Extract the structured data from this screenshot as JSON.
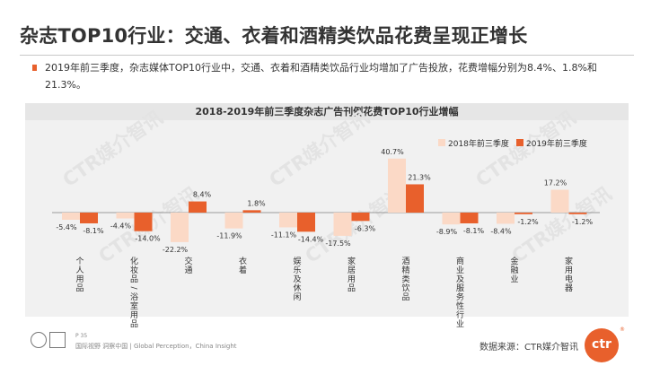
{
  "title": "杂志TOP10行业：交通、衣着和酒精类饮品花费呈现正增长",
  "bullet": "2019年前三季度，杂志媒体TOP10行业中，交通、衣着和酒精类饮品行业均增加了广告投放，花费增幅分别为8.4%、1.8%和21.3%。",
  "watermark": "CTR媒介智讯",
  "page_number": "P 35",
  "footer": "国际视野 洞察中国 | Global Perception，China Insight",
  "source": "数据来源：CTR媒介智讯",
  "logo_text": "ctr",
  "logo_reg": "®",
  "colors": {
    "accent": "#e8602c",
    "light_bar": "#fbd9c6",
    "dark_bar": "#e8602c"
  },
  "chart_data": {
    "type": "bar",
    "title": "2018-2019年前三季度杂志广告刊例花费TOP10行业增幅",
    "legend_position": "top-right",
    "categories": [
      "个人用品",
      "化妆品/浴室用品",
      "交通",
      "衣着",
      "娱乐及休闲",
      "家居用品",
      "酒精类饮品",
      "商业及服务性行业",
      "金融业",
      "家用电器"
    ],
    "series": [
      {
        "name": "2018年前三季度",
        "color": "#fbd9c6",
        "values": [
          -5.4,
          -4.4,
          -22.2,
          -11.9,
          -11.1,
          -17.5,
          40.7,
          -8.9,
          -8.4,
          17.2
        ],
        "labels": [
          "-5.4%",
          "-4.4%",
          "-22.2%",
          "-11.9%",
          "-11.1%",
          "-17.5%",
          "40.7%",
          "-8.9%",
          "-8.4%",
          "17.2%"
        ]
      },
      {
        "name": "2019年前三季度",
        "color": "#e8602c",
        "values": [
          -8.1,
          -14.0,
          8.4,
          1.8,
          -14.4,
          -6.3,
          21.3,
          -8.1,
          -1.2,
          -1.2
        ],
        "labels": [
          "-8.1%",
          "-14.0%",
          "8.4%",
          "1.8%",
          "-14.4%",
          "-6.3%",
          "21.3%",
          "-8.1%",
          "-1.2%",
          "-1.2%"
        ]
      }
    ],
    "grid": false
  }
}
